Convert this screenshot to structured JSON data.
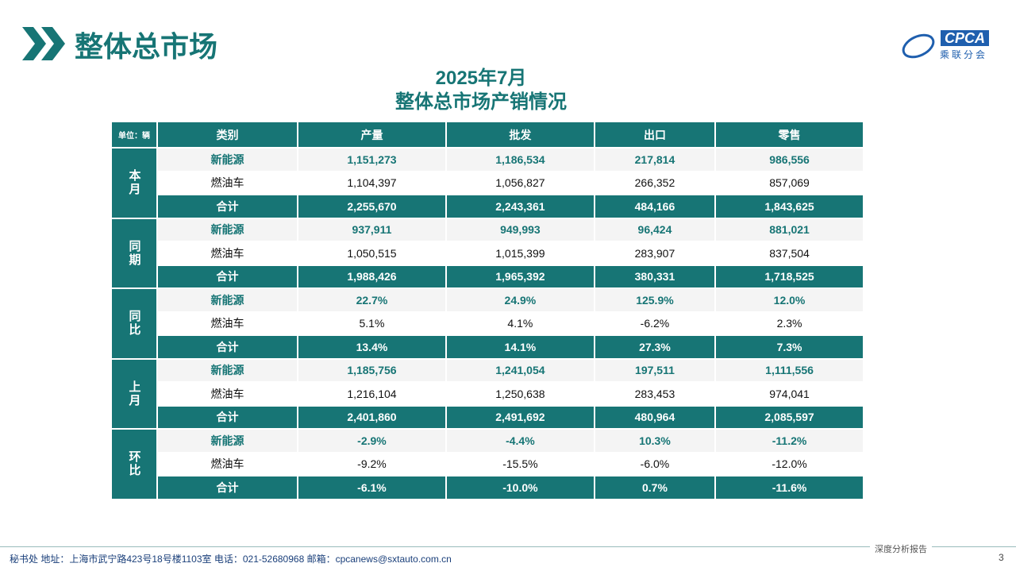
{
  "header": {
    "title": "整体总市场",
    "logo_text": "CPCA",
    "logo_subtext": "乘联分会"
  },
  "table": {
    "title": "2025年7月",
    "subtitle": "整体总市场产销情况",
    "unit": "单位：辆",
    "columns": [
      "类别",
      "产量",
      "批发",
      "出口",
      "零售"
    ],
    "groups": [
      {
        "label": "本月",
        "rows": [
          [
            "新能源",
            "1,151,273",
            "1,186,534",
            "217,814",
            "986,556"
          ],
          [
            "燃油车",
            "1,104,397",
            "1,056,827",
            "266,352",
            "857,069"
          ],
          [
            "合计",
            "2,255,670",
            "2,243,361",
            "484,166",
            "1,843,625"
          ]
        ]
      },
      {
        "label": "同期",
        "rows": [
          [
            "新能源",
            "937,911",
            "949,993",
            "96,424",
            "881,021"
          ],
          [
            "燃油车",
            "1,050,515",
            "1,015,399",
            "283,907",
            "837,504"
          ],
          [
            "合计",
            "1,988,426",
            "1,965,392",
            "380,331",
            "1,718,525"
          ]
        ]
      },
      {
        "label": "同比",
        "rows": [
          [
            "新能源",
            "22.7%",
            "24.9%",
            "125.9%",
            "12.0%"
          ],
          [
            "燃油车",
            "5.1%",
            "4.1%",
            "-6.2%",
            "2.3%"
          ],
          [
            "合计",
            "13.4%",
            "14.1%",
            "27.3%",
            "7.3%"
          ]
        ]
      },
      {
        "label": "上月",
        "rows": [
          [
            "新能源",
            "1,185,756",
            "1,241,054",
            "197,511",
            "1,111,556"
          ],
          [
            "燃油车",
            "1,216,104",
            "1,250,638",
            "283,453",
            "974,041"
          ],
          [
            "合计",
            "2,401,860",
            "2,491,692",
            "480,964",
            "2,085,597"
          ]
        ]
      },
      {
        "label": "环比",
        "rows": [
          [
            "新能源",
            "-2.9%",
            "-4.4%",
            "10.3%",
            "-11.2%"
          ],
          [
            "燃油车",
            "-9.2%",
            "-15.5%",
            "-6.0%",
            "-12.0%"
          ],
          [
            "合计",
            "-6.1%",
            "-10.0%",
            "0.7%",
            "-11.6%"
          ]
        ]
      }
    ]
  },
  "footer": {
    "contact": "秘书处   地址：上海市武宁路423号18号楼1103室  电话：021-52680968   邮箱：cpcanews@sxtauto.com.cn",
    "tag": "深度分析报告",
    "page": "3"
  }
}
